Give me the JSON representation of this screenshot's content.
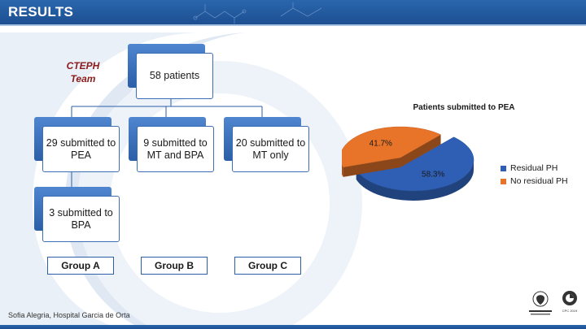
{
  "header": {
    "title": "RESULTS"
  },
  "team_label": [
    "CTEPH",
    "Team"
  ],
  "nodes": {
    "root": "58 patients",
    "pea": "29 submitted to PEA",
    "mt_bpa": "9 submitted to MT and BPA",
    "mt_only": "20 submitted to MT only",
    "bpa": "3 submitted to BPA"
  },
  "groups": {
    "a": "Group A",
    "b": "Group B",
    "c": "Group C"
  },
  "chart_data": {
    "type": "pie",
    "title": "Patients submitted to PEA",
    "categories": [
      "Residual PH",
      "No residual PH"
    ],
    "values": [
      58.3,
      41.7
    ],
    "data_labels": [
      "58.3%",
      "41.7%"
    ],
    "colors": [
      "#2e5fb4",
      "#e8742a"
    ],
    "legend": "right",
    "style": "3d-exploded"
  },
  "footer": {
    "author": "Sofia Alegria, Hospital Garcia de Orta"
  },
  "logos": {
    "right_caption": "CPC 2019"
  },
  "colors": {
    "header_blue": "#1d4f91",
    "team_red": "#8b1a1a",
    "box_blue": "#2b5fa8"
  }
}
